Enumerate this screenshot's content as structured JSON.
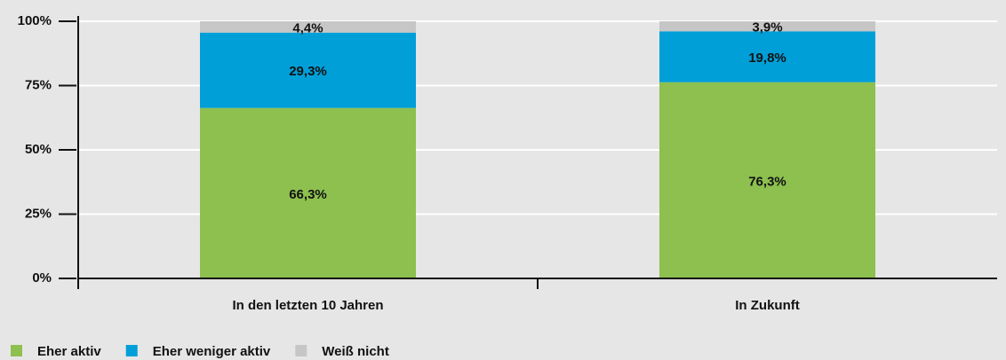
{
  "chart_data": {
    "type": "stacked_bar",
    "categories": [
      "In den letzten 10 Jahren",
      "In Zukunft"
    ],
    "series": [
      {
        "name": "Eher aktiv",
        "color": "#8dc04f",
        "values": [
          66.3,
          76.3
        ],
        "value_labels": [
          "66,3%",
          "76,3%"
        ]
      },
      {
        "name": "Eher weniger aktiv",
        "color": "#009fd8",
        "values": [
          29.3,
          19.8
        ],
        "value_labels": [
          "29,3%",
          "19,8%"
        ]
      },
      {
        "name": "Weiß nicht",
        "color": "#c6c6c6",
        "values": [
          4.4,
          3.9
        ],
        "value_labels": [
          "4,4%",
          "3,9%"
        ]
      }
    ],
    "ylim": [
      0,
      100
    ],
    "yticks": [
      {
        "value": 0,
        "label": "0%"
      },
      {
        "value": 25,
        "label": "25%"
      },
      {
        "value": 50,
        "label": "50%"
      },
      {
        "value": 75,
        "label": "75%"
      },
      {
        "value": 100,
        "label": "100%"
      }
    ],
    "grid": true,
    "legend": "bottom-left"
  }
}
